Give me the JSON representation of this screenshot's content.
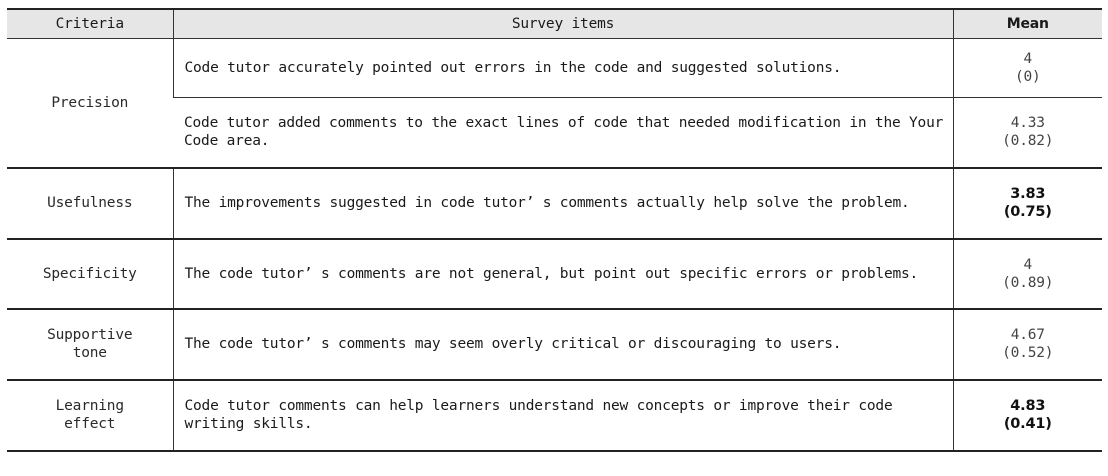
{
  "header": {
    "criteria": "Criteria",
    "survey_items": "Survey items",
    "mean": "Mean"
  },
  "rows": [
    {
      "criteria": "Precision",
      "item": "Code tutor accurately pointed out errors in the code and suggested solutions.",
      "mean": "4",
      "sd": "(0)"
    },
    {
      "criteria": "",
      "item": "Code tutor added comments to the exact lines of code that needed modification in the Your Code area.",
      "mean": "4.33",
      "sd": "(0.82)"
    },
    {
      "criteria": "Usefulness",
      "item": "The improvements suggested in code tutor’ s comments actually help solve the problem.",
      "mean": "3.83",
      "sd": "(0.75)"
    },
    {
      "criteria": "Specificity",
      "item": "The code tutor’ s comments are not general, but point out specific errors or problems.",
      "mean": "4",
      "sd": "(0.89)"
    },
    {
      "criteria": "Supportive tone",
      "item": "The code tutor’ s comments may seem overly critical or discouraging to users.",
      "mean": "4.67",
      "sd": "(0.52)"
    },
    {
      "criteria": "Learning effect",
      "item": "Code tutor comments can help learners understand new concepts or improve their code writing skills.",
      "mean": "4.83",
      "sd": "(0.41)"
    }
  ]
}
